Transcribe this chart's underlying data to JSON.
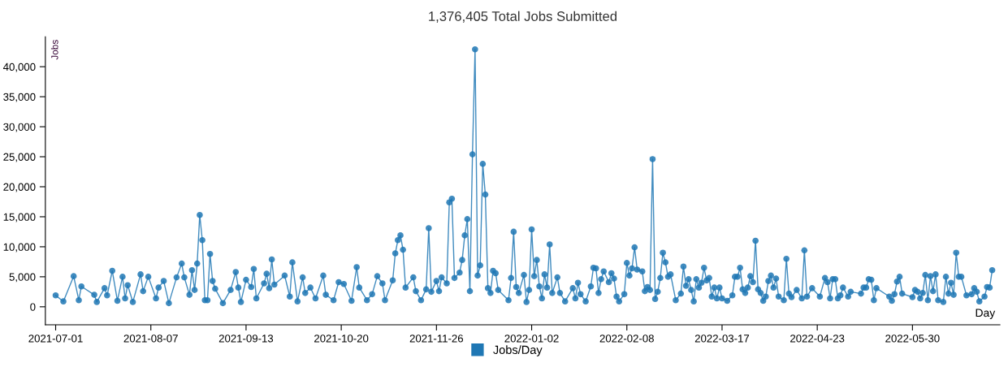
{
  "chart_data": {
    "type": "line",
    "title": "1,376,405 Total Jobs Submitted",
    "xlabel": "Day",
    "ylabel": "Jobs",
    "xlim": [
      "2021-06-27",
      "2022-07-03"
    ],
    "xticks": [
      "2021-07-01",
      "2021-08-07",
      "2021-09-13",
      "2021-10-20",
      "2021-11-26",
      "2022-01-02",
      "2022-02-08",
      "2022-03-17",
      "2022-04-23",
      "2022-05-30"
    ],
    "ylim": [
      -3000,
      45000
    ],
    "yticks": [
      {
        "value": 0,
        "label": "0"
      },
      {
        "value": 5000,
        "label": "5,000"
      },
      {
        "value": 10000,
        "label": "10,000"
      },
      {
        "value": 15000,
        "label": "15,000"
      },
      {
        "value": 20000,
        "label": "20,000"
      },
      {
        "value": 25000,
        "label": "25,000"
      },
      {
        "value": 30000,
        "label": "30,000"
      },
      {
        "value": 35000,
        "label": "35,000"
      },
      {
        "value": 40000,
        "label": "40,000"
      }
    ],
    "grid": false,
    "legend": "bottom",
    "marker": "circle",
    "line_style": "solid",
    "x": [
      "2021-07-01",
      "2021-07-04",
      "2021-07-08",
      "2021-07-10",
      "2021-07-11",
      "2021-07-16",
      "2021-07-17",
      "2021-07-20",
      "2021-07-21",
      "2021-07-23",
      "2021-07-25",
      "2021-07-27",
      "2021-07-28",
      "2021-07-29",
      "2021-07-31",
      "2021-08-03",
      "2021-08-04",
      "2021-08-06",
      "2021-08-09",
      "2021-08-10",
      "2021-08-12",
      "2021-08-14",
      "2021-08-17",
      "2021-08-19",
      "2021-08-20",
      "2021-08-22",
      "2021-08-23",
      "2021-08-24",
      "2021-08-25",
      "2021-08-26",
      "2021-08-27",
      "2021-08-28",
      "2021-08-29",
      "2021-08-30",
      "2021-08-31",
      "2021-09-01",
      "2021-09-04",
      "2021-09-07",
      "2021-09-09",
      "2021-09-10",
      "2021-09-11",
      "2021-09-13",
      "2021-09-15",
      "2021-09-16",
      "2021-09-17",
      "2021-09-20",
      "2021-09-21",
      "2021-09-22",
      "2021-09-23",
      "2021-09-24",
      "2021-09-28",
      "2021-09-30",
      "2021-10-01",
      "2021-10-03",
      "2021-10-05",
      "2021-10-06",
      "2021-10-08",
      "2021-10-10",
      "2021-10-13",
      "2021-10-14",
      "2021-10-17",
      "2021-10-19",
      "2021-10-21",
      "2021-10-24",
      "2021-10-26",
      "2021-10-27",
      "2021-10-30",
      "2021-11-01",
      "2021-11-03",
      "2021-11-05",
      "2021-11-06",
      "2021-11-09",
      "2021-11-10",
      "2021-11-11",
      "2021-11-12",
      "2021-11-13",
      "2021-11-14",
      "2021-11-17",
      "2021-11-18",
      "2021-11-20",
      "2021-11-22",
      "2021-11-23",
      "2021-11-24",
      "2021-11-26",
      "2021-11-27",
      "2021-11-28",
      "2021-11-30",
      "2021-12-01",
      "2021-12-02",
      "2021-12-03",
      "2021-12-05",
      "2021-12-06",
      "2021-12-07",
      "2021-12-08",
      "2021-12-09",
      "2021-12-10",
      "2021-12-11",
      "2021-12-12",
      "2021-12-13",
      "2021-12-14",
      "2021-12-15",
      "2021-12-16",
      "2021-12-17",
      "2021-12-18",
      "2021-12-19",
      "2021-12-20",
      "2021-12-24",
      "2021-12-25",
      "2021-12-26",
      "2021-12-27",
      "2021-12-28",
      "2021-12-30",
      "2021-12-31",
      "2022-01-01",
      "2022-01-02",
      "2022-01-03",
      "2022-01-04",
      "2022-01-05",
      "2022-01-06",
      "2022-01-07",
      "2022-01-08",
      "2022-01-09",
      "2022-01-10",
      "2022-01-12",
      "2022-01-13",
      "2022-01-15",
      "2022-01-18",
      "2022-01-19",
      "2022-01-20",
      "2022-01-21",
      "2022-01-23",
      "2022-01-25",
      "2022-01-26",
      "2022-01-27",
      "2022-01-28",
      "2022-01-29",
      "2022-01-30",
      "2022-02-01",
      "2022-02-02",
      "2022-02-03",
      "2022-02-04",
      "2022-02-05",
      "2022-02-07",
      "2022-02-08",
      "2022-02-09",
      "2022-02-10",
      "2022-02-11",
      "2022-02-12",
      "2022-02-14",
      "2022-02-15",
      "2022-02-16",
      "2022-02-17",
      "2022-02-18",
      "2022-02-19",
      "2022-02-20",
      "2022-02-21",
      "2022-02-22",
      "2022-02-23",
      "2022-02-24",
      "2022-02-25",
      "2022-02-27",
      "2022-03-01",
      "2022-03-02",
      "2022-03-03",
      "2022-03-04",
      "2022-03-05",
      "2022-03-06",
      "2022-03-07",
      "2022-03-08",
      "2022-03-09",
      "2022-03-10",
      "2022-03-11",
      "2022-03-12",
      "2022-03-13",
      "2022-03-14",
      "2022-03-15",
      "2022-03-16",
      "2022-03-17",
      "2022-03-19",
      "2022-03-21",
      "2022-03-22",
      "2022-03-23",
      "2022-03-24",
      "2022-03-25",
      "2022-03-26",
      "2022-03-27",
      "2022-03-28",
      "2022-03-29",
      "2022-03-30",
      "2022-03-31",
      "2022-04-01",
      "2022-04-02",
      "2022-04-03",
      "2022-04-04",
      "2022-04-05",
      "2022-04-06",
      "2022-04-07",
      "2022-04-08",
      "2022-04-10",
      "2022-04-11",
      "2022-04-12",
      "2022-04-13",
      "2022-04-15",
      "2022-04-17",
      "2022-04-18",
      "2022-04-19",
      "2022-04-21",
      "2022-04-24",
      "2022-04-26",
      "2022-04-27",
      "2022-04-28",
      "2022-04-29",
      "2022-04-30",
      "2022-05-01",
      "2022-05-02",
      "2022-05-03",
      "2022-05-05",
      "2022-05-06",
      "2022-05-10",
      "2022-05-11",
      "2022-05-12",
      "2022-05-13",
      "2022-05-14",
      "2022-05-15",
      "2022-05-16",
      "2022-05-21",
      "2022-05-22",
      "2022-05-23",
      "2022-05-24",
      "2022-05-25",
      "2022-05-26",
      "2022-05-30",
      "2022-05-31",
      "2022-06-01",
      "2022-06-02",
      "2022-06-03",
      "2022-06-04",
      "2022-06-05",
      "2022-06-06",
      "2022-06-07",
      "2022-06-08",
      "2022-06-09",
      "2022-06-11",
      "2022-06-12",
      "2022-06-13",
      "2022-06-14",
      "2022-06-15",
      "2022-06-16",
      "2022-06-17",
      "2022-06-18",
      "2022-06-20",
      "2022-06-22",
      "2022-06-23",
      "2022-06-24",
      "2022-06-25",
      "2022-06-27",
      "2022-06-28",
      "2022-06-29",
      "2022-06-30"
    ],
    "series": [
      {
        "name": "Jobs/Day",
        "color": "#1f77b4",
        "values": [
          1900,
          900,
          5100,
          1100,
          3400,
          2000,
          800,
          3100,
          1900,
          6000,
          1000,
          5000,
          1400,
          3600,
          800,
          5400,
          2600,
          5000,
          1400,
          3200,
          4300,
          600,
          4900,
          7200,
          4900,
          2000,
          6100,
          2800,
          7200,
          15300,
          11100,
          1100,
          1100,
          8800,
          4300,
          3000,
          600,
          2800,
          5800,
          3200,
          800,
          4500,
          3300,
          6300,
          1400,
          3900,
          5500,
          3100,
          7900,
          3700,
          5200,
          1700,
          7400,
          900,
          4900,
          2300,
          3200,
          1400,
          5200,
          2000,
          1100,
          4100,
          3800,
          1000,
          6600,
          3200,
          1100,
          2100,
          5100,
          3900,
          1100,
          4400,
          8900,
          11100,
          11900,
          9500,
          3200,
          4900,
          2600,
          1100,
          2900,
          13100,
          2500,
          4300,
          2600,
          4900,
          3900,
          17400,
          18000,
          4800,
          5700,
          7800,
          11900,
          14600,
          2600,
          25400,
          42900,
          5200,
          6900,
          23800,
          18700,
          3100,
          2300,
          6000,
          5600,
          2800,
          1100,
          4800,
          12500,
          3300,
          2300,
          5300,
          800,
          2800,
          12900,
          5100,
          7800,
          3400,
          1400,
          5400,
          3200,
          10400,
          2300,
          4900,
          2300,
          900,
          3100,
          1400,
          4000,
          2100,
          900,
          3400,
          6500,
          6400,
          2300,
          4600,
          5900,
          4100,
          5600,
          4700,
          1700,
          900,
          2100,
          7300,
          5200,
          6400,
          9900,
          6200,
          5900,
          2600,
          3300,
          2800,
          24600,
          1300,
          2500,
          4800,
          9000,
          7400,
          5000,
          5400,
          1100,
          2200,
          6700,
          3500,
          4600,
          2800,
          900,
          4600,
          3200,
          4000,
          6500,
          4400,
          4800,
          1700,
          3200,
          1400,
          3200,
          1400,
          1000,
          1900,
          5000,
          5000,
          6500,
          2900,
          2300,
          3200,
          5100,
          4100,
          11000,
          2900,
          2300,
          1000,
          1700,
          4300,
          5200,
          3200,
          4700,
          1700,
          1100,
          8000,
          2200,
          1600,
          2800,
          1400,
          9400,
          1700,
          3100,
          1700,
          4800,
          4100,
          1400,
          4600,
          4600,
          1400,
          1900,
          3200,
          1700,
          2500,
          2200,
          3200,
          3200,
          4600,
          4500,
          1100,
          3100,
          1700,
          1000,
          2100,
          4200,
          5000,
          2200,
          1600,
          2800,
          2500,
          1400,
          2300,
          5300,
          1100,
          5100,
          2600,
          5400,
          1100,
          800,
          5000,
          2200,
          4000,
          2000,
          9000,
          5000,
          5000,
          1900,
          2100,
          3100,
          2500,
          900,
          1700,
          3300,
          3200,
          6100
        ]
      }
    ]
  }
}
